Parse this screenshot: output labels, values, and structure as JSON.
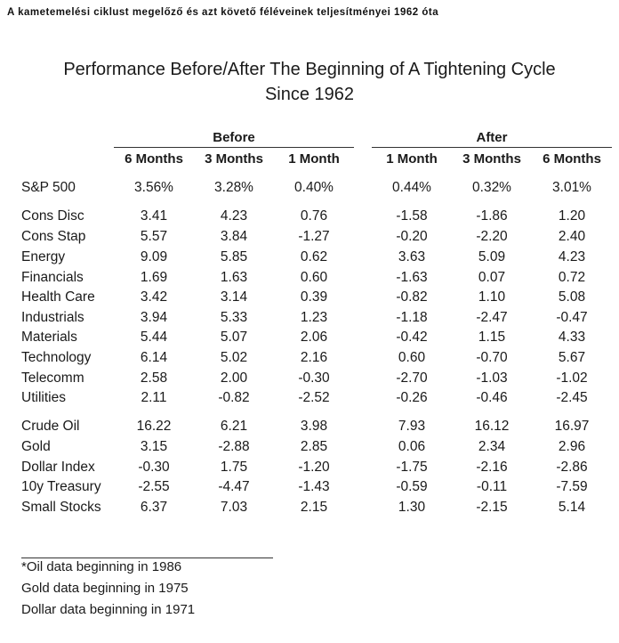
{
  "caption": "A kametemelési ciklust megelőző és azt követő féléveinek teljesítményei 1962 óta",
  "title_line1": "Performance Before/After The Beginning of A Tightening Cycle",
  "title_line2": "Since 1962",
  "groups": {
    "before": "Before",
    "after": "After"
  },
  "columns": [
    "6 Months",
    "3 Months",
    "1 Month",
    "1 Month",
    "3 Months",
    "6 Months"
  ],
  "rows": [
    {
      "label": "S&P 500",
      "values": [
        "3.56%",
        "3.28%",
        "0.40%",
        "0.44%",
        "0.32%",
        "3.01%"
      ]
    },
    {
      "label": "Cons Disc",
      "values": [
        "3.41",
        "4.23",
        "0.76",
        "-1.58",
        "-1.86",
        "1.20"
      ]
    },
    {
      "label": "Cons Stap",
      "values": [
        "5.57",
        "3.84",
        "-1.27",
        "-0.20",
        "-2.20",
        "2.40"
      ]
    },
    {
      "label": "Energy",
      "values": [
        "9.09",
        "5.85",
        "0.62",
        "3.63",
        "5.09",
        "4.23"
      ]
    },
    {
      "label": "Financials",
      "values": [
        "1.69",
        "1.63",
        "0.60",
        "-1.63",
        "0.07",
        "0.72"
      ]
    },
    {
      "label": "Health Care",
      "values": [
        "3.42",
        "3.14",
        "0.39",
        "-0.82",
        "1.10",
        "5.08"
      ]
    },
    {
      "label": "Industrials",
      "values": [
        "3.94",
        "5.33",
        "1.23",
        "-1.18",
        "-2.47",
        "-0.47"
      ]
    },
    {
      "label": "Materials",
      "values": [
        "5.44",
        "5.07",
        "2.06",
        "-0.42",
        "1.15",
        "4.33"
      ]
    },
    {
      "label": "Technology",
      "values": [
        "6.14",
        "5.02",
        "2.16",
        "0.60",
        "-0.70",
        "5.67"
      ]
    },
    {
      "label": "Telecomm",
      "values": [
        "2.58",
        "2.00",
        "-0.30",
        "-2.70",
        "-1.03",
        "-1.02"
      ]
    },
    {
      "label": "Utilities",
      "values": [
        "2.11",
        "-0.82",
        "-2.52",
        "-0.26",
        "-0.46",
        "-2.45"
      ]
    },
    {
      "label": "Crude Oil",
      "values": [
        "16.22",
        "6.21",
        "3.98",
        "7.93",
        "16.12",
        "16.97"
      ]
    },
    {
      "label": "Gold",
      "values": [
        "3.15",
        "-2.88",
        "2.85",
        "0.06",
        "2.34",
        "2.96"
      ]
    },
    {
      "label": "Dollar Index",
      "values": [
        "-0.30",
        "1.75",
        "-1.20",
        "-1.75",
        "-2.16",
        "-2.86"
      ]
    },
    {
      "label": "10y Treasury",
      "values": [
        "-2.55",
        "-4.47",
        "-1.43",
        "-0.59",
        "-0.11",
        "-7.59"
      ]
    },
    {
      "label": "Small Stocks",
      "values": [
        "6.37",
        "7.03",
        "2.15",
        "1.30",
        "-2.15",
        "5.14"
      ]
    }
  ],
  "footnotes": [
    "*Oil data beginning in 1986",
    "Gold data beginning in 1975",
    "Dollar data beginning in 1971"
  ]
}
